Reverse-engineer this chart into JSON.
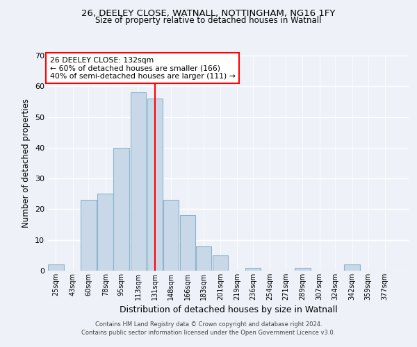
{
  "title_line1": "26, DEELEY CLOSE, WATNALL, NOTTINGHAM, NG16 1FY",
  "title_line2": "Size of property relative to detached houses in Watnall",
  "xlabel": "Distribution of detached houses by size in Watnall",
  "ylabel": "Number of detached properties",
  "bar_color": "#c8d8e8",
  "bar_edgecolor": "#8ab4cc",
  "vline_x": 131,
  "vline_color": "red",
  "annotation_text": "26 DEELEY CLOSE: 132sqm\n← 60% of detached houses are smaller (166)\n40% of semi-detached houses are larger (111) →",
  "annotation_box_color": "white",
  "annotation_box_edgecolor": "red",
  "categories": [
    "25sqm",
    "43sqm",
    "60sqm",
    "78sqm",
    "95sqm",
    "113sqm",
    "131sqm",
    "148sqm",
    "166sqm",
    "183sqm",
    "201sqm",
    "219sqm",
    "236sqm",
    "254sqm",
    "271sqm",
    "289sqm",
    "307sqm",
    "324sqm",
    "342sqm",
    "359sqm",
    "377sqm"
  ],
  "bin_edges": [
    25,
    43,
    60,
    78,
    95,
    113,
    131,
    148,
    166,
    183,
    201,
    219,
    236,
    254,
    271,
    289,
    307,
    324,
    342,
    359,
    377
  ],
  "bin_width": 17,
  "values": [
    2,
    0,
    23,
    25,
    40,
    58,
    56,
    23,
    18,
    8,
    5,
    0,
    1,
    0,
    0,
    1,
    0,
    0,
    2,
    0,
    0
  ],
  "ylim": [
    0,
    70
  ],
  "yticks": [
    0,
    10,
    20,
    30,
    40,
    50,
    60,
    70
  ],
  "background_color": "#eef2f8",
  "grid_color": "#ffffff",
  "footnote1": "Contains HM Land Registry data © Crown copyright and database right 2024.",
  "footnote2": "Contains public sector information licensed under the Open Government Licence v3.0."
}
